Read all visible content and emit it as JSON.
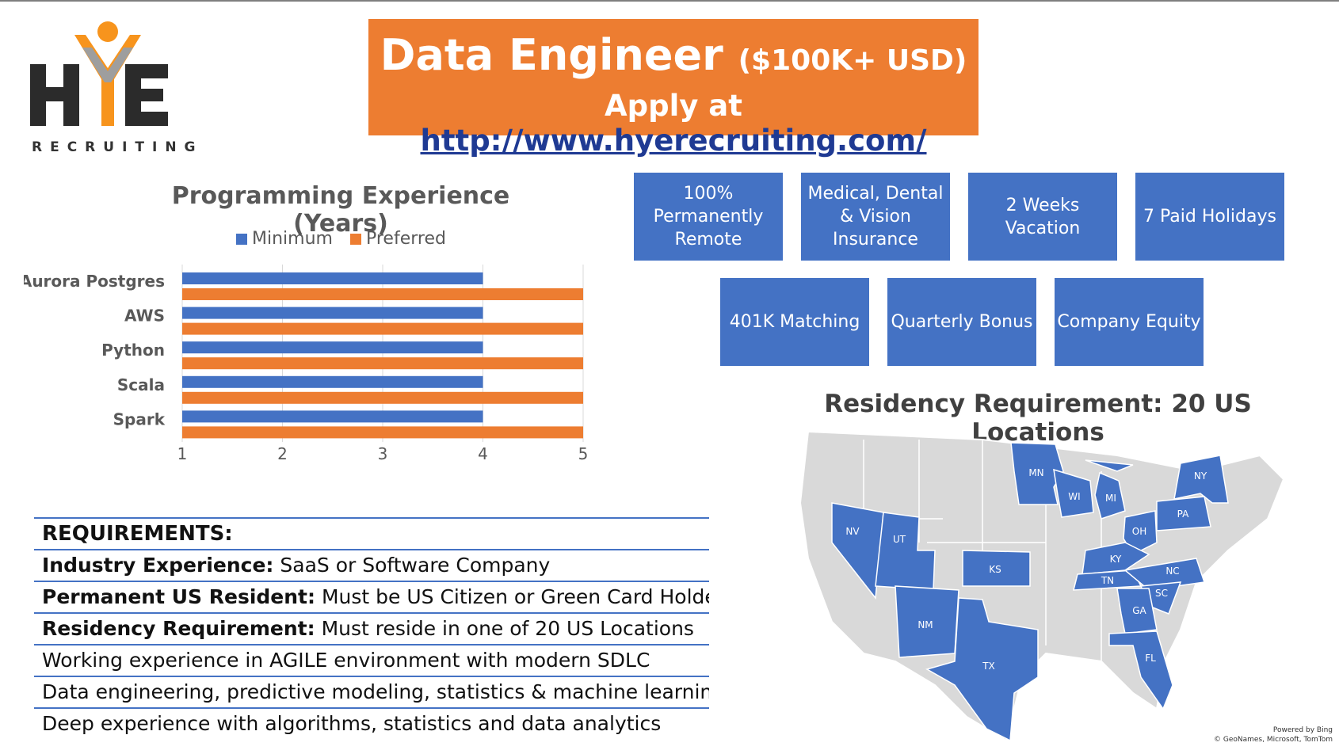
{
  "logo": {
    "letters": "HYE",
    "tagline": "RECRUITING"
  },
  "banner": {
    "title": "Data Engineer",
    "salary": "($100K+ USD)",
    "apply_prefix": "Apply at",
    "apply_link": "http://www.hyerecruiting.com/"
  },
  "colors": {
    "orange": "#ed7d31",
    "blue": "#4472c4",
    "gray_state": "#d9d9d9"
  },
  "chart_data": {
    "type": "bar",
    "orientation": "horizontal",
    "title": "Programming Experience (Years)",
    "categories": [
      "Aurora Postgres",
      "AWS",
      "Python",
      "Scala",
      "Spark"
    ],
    "series": [
      {
        "name": "Minimum",
        "values": [
          4,
          4,
          4,
          4,
          4
        ],
        "color": "#4472c4"
      },
      {
        "name": "Preferred",
        "values": [
          5,
          5,
          5,
          5,
          5
        ],
        "color": "#ed7d31"
      }
    ],
    "xlim": [
      1,
      5
    ],
    "xticks": [
      "1",
      "2",
      "3",
      "4",
      "5"
    ],
    "legend": "top",
    "grid": true
  },
  "requirements": {
    "heading": "REQUIREMENTS:",
    "rows": [
      {
        "label": "Industry Experience:",
        "text": " SaaS or Software Company"
      },
      {
        "label": "Permanent US Resident:",
        "text": " Must be US Citizen or Green Card Holder"
      },
      {
        "label": "Residency Requirement:",
        "text": " Must reside in one of 20 US Locations"
      },
      {
        "label": "",
        "text": "Working experience in AGILE environment with modern SDLC"
      },
      {
        "label": "",
        "text": "Data engineering, predictive modeling, statistics & machine learning"
      },
      {
        "label": "",
        "text": "Deep experience with algorithms, statistics and data analytics"
      }
    ]
  },
  "benefits": [
    "100% Permanently Remote",
    "Medical, Dental & Vision Insurance",
    "2 Weeks Vacation",
    "7 Paid Holidays",
    "401K Matching",
    "Quarterly Bonus",
    "Company Equity"
  ],
  "residency": {
    "title": "Residency Requirement: 20 US Locations",
    "states": [
      "MN",
      "WI",
      "MI",
      "NY",
      "PA",
      "OH",
      "NV",
      "UT",
      "KS",
      "KY",
      "TN",
      "NC",
      "SC",
      "GA",
      "NM",
      "TX",
      "FL"
    ],
    "credit_line1": "Powered by Bing",
    "credit_line2": "© GeoNames, Microsoft, TomTom"
  }
}
